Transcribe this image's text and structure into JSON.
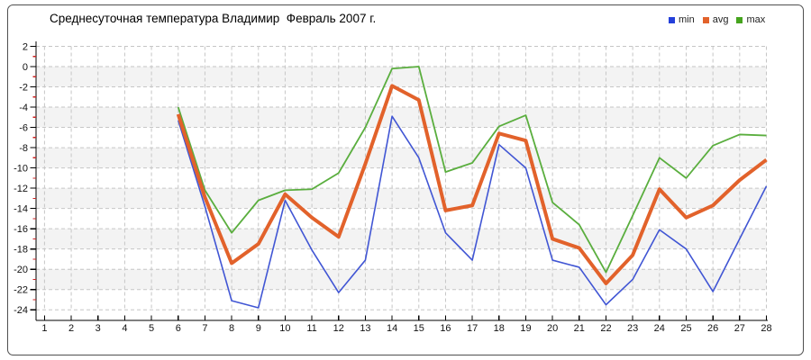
{
  "chart_data": {
    "type": "line",
    "title": "Среднесуточная температура Владимир  Февраль 2007 г.",
    "xlabel": "",
    "ylabel": "",
    "grid": true,
    "legend_position": "top-right",
    "x": [
      6,
      7,
      8,
      9,
      10,
      11,
      12,
      13,
      14,
      15,
      16,
      17,
      18,
      19,
      20,
      21,
      22,
      23,
      24,
      25,
      26,
      27,
      28
    ],
    "x_axis": {
      "range": [
        1,
        28
      ],
      "ticks": [
        1,
        2,
        3,
        4,
        5,
        6,
        7,
        8,
        9,
        10,
        11,
        12,
        13,
        14,
        15,
        16,
        17,
        18,
        19,
        20,
        21,
        22,
        23,
        24,
        25,
        26,
        27,
        28
      ]
    },
    "y_axis": {
      "range": [
        -24,
        2
      ],
      "tick_step": 2,
      "minor_tick_step": 1
    },
    "series": [
      {
        "name": "min",
        "color": "#4156d4",
        "width": 1.6,
        "values": [
          -5.3,
          -13.8,
          -23.1,
          -23.8,
          -13.2,
          -18.1,
          -22.3,
          -19.1,
          -4.9,
          -9.0,
          -16.4,
          -19.1,
          -7.7,
          -10.0,
          -19.1,
          -19.8,
          -23.5,
          -21.0,
          -16.1,
          -18.0,
          -22.2,
          -17.0,
          -11.8
        ]
      },
      {
        "name": "avg",
        "color": "#e2622b",
        "width": 4,
        "values": [
          -4.7,
          -12.9,
          -19.4,
          -17.5,
          -12.6,
          -14.9,
          -16.8,
          -9.6,
          -1.9,
          -3.3,
          -14.2,
          -13.7,
          -6.6,
          -7.3,
          -17.0,
          -17.9,
          -21.4,
          -18.6,
          -12.1,
          -14.9,
          -13.7,
          -11.2,
          -9.2
        ]
      },
      {
        "name": "max",
        "color": "#5aae3e",
        "width": 1.8,
        "values": [
          -4.0,
          -12.2,
          -16.4,
          -13.2,
          -12.2,
          -12.1,
          -10.5,
          -6.0,
          -0.2,
          0.0,
          -10.4,
          -9.5,
          -5.9,
          -4.8,
          -13.4,
          -15.6,
          -20.3,
          -14.7,
          -9.0,
          -11.0,
          -7.8,
          -6.7,
          -6.8
        ]
      }
    ],
    "plot": {
      "band_color": "#f3f3f3",
      "grid_color": "#c6c6c6",
      "axis_color": "#000000",
      "minor_tick_color": "#cc2222",
      "frame_color": "#4f4f4f"
    }
  },
  "legend": {
    "items": [
      {
        "label": "min",
        "color": "#2440da"
      },
      {
        "label": "avg",
        "color": "#e2622b"
      },
      {
        "label": "max",
        "color": "#46a41e"
      }
    ]
  }
}
